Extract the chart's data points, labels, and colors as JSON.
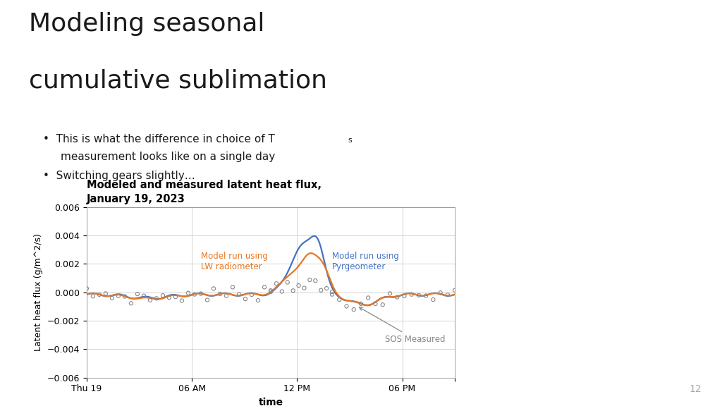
{
  "title_line1": "Modeling seasonal",
  "title_line2": "cumulative sublimation",
  "bullet1": "This is what the difference in choice of T",
  "bullet1_sub": "s",
  "bullet1_line2": "measurement looks like on a single day",
  "bullet2": "Switching gears slightly…",
  "chart_title_line1": "Modeled and measured latent heat flux,",
  "chart_title_line2": "January 19, 2023",
  "xlabel": "time",
  "ylabel": "Latent heat flux (g/m^2/s)",
  "ylim": [
    -0.006,
    0.006
  ],
  "yticks": [
    -0.006,
    -0.004,
    -0.002,
    0.0,
    0.002,
    0.004,
    0.006
  ],
  "xtick_positions": [
    0,
    6,
    12,
    18,
    21
  ],
  "xtick_labels": [
    "Thu 19",
    "06 AM",
    "12 PM",
    "06 PM",
    ""
  ],
  "lw_color": "#e87722",
  "pyro_color": "#4472c4",
  "measured_color": "#888888",
  "annotation_color": "#888888",
  "background_color": "#ffffff",
  "slide_number": "12",
  "page_num_color": "#aaaaaa"
}
